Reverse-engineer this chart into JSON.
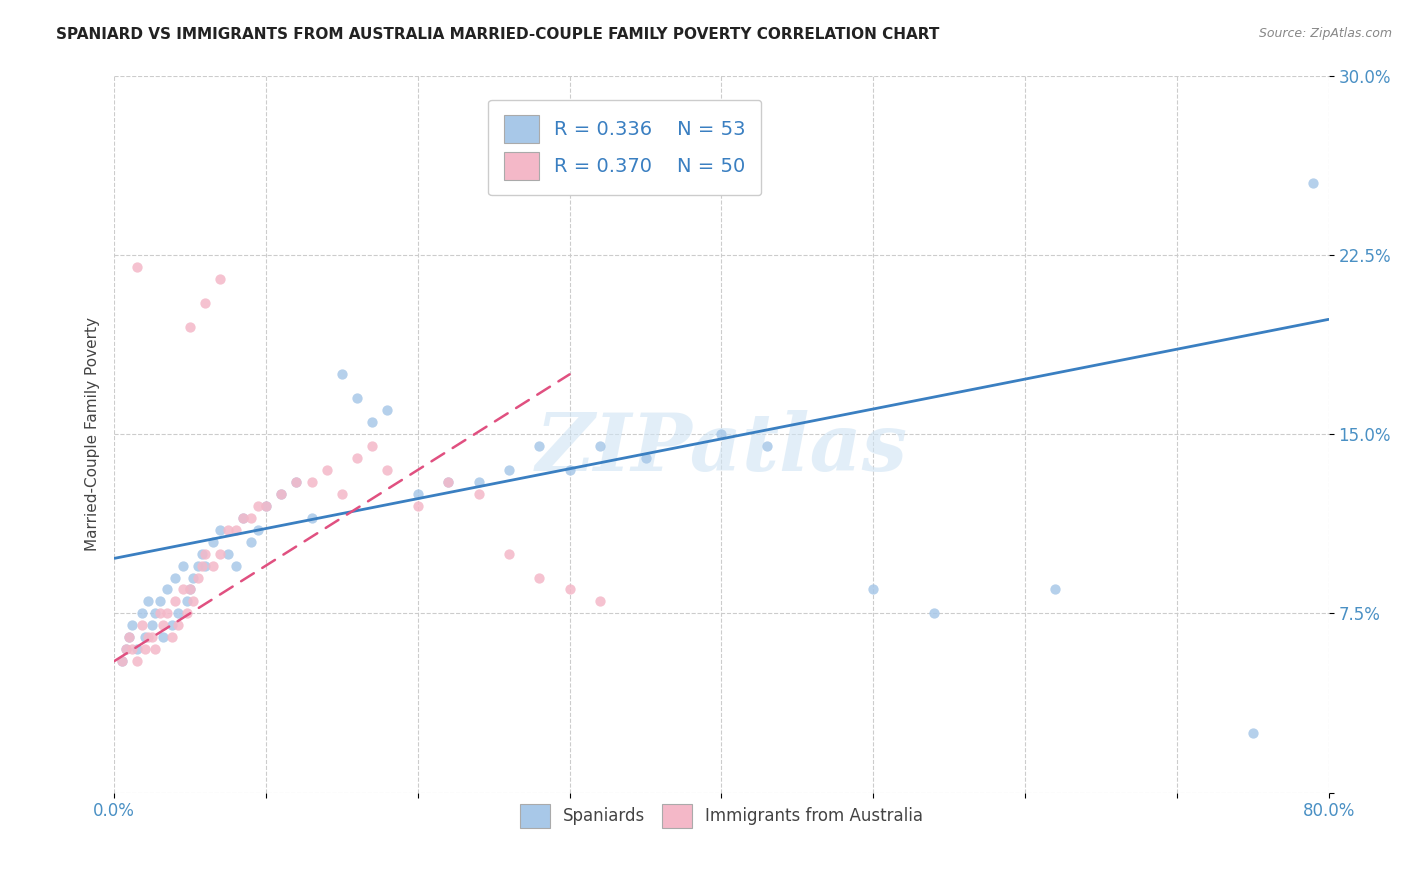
{
  "title": "SPANIARD VS IMMIGRANTS FROM AUSTRALIA MARRIED-COUPLE FAMILY POVERTY CORRELATION CHART",
  "source": "Source: ZipAtlas.com",
  "ylabel": "Married-Couple Family Poverty",
  "xlim": [
    0.0,
    0.8
  ],
  "ylim": [
    0.0,
    0.3
  ],
  "blue_color": "#a8c8e8",
  "pink_color": "#f4b8c8",
  "blue_line_color": "#3a7fc1",
  "pink_line_color": "#e05080",
  "watermark_text": "ZIPatlas",
  "blue_r": "0.336",
  "blue_n": "53",
  "pink_r": "0.370",
  "pink_n": "50",
  "blue_line_x": [
    0.0,
    0.8
  ],
  "blue_line_y": [
    0.098,
    0.198
  ],
  "pink_line_x": [
    0.0,
    0.3
  ],
  "pink_line_y": [
    0.055,
    0.175
  ],
  "spaniards_x": [
    0.005,
    0.008,
    0.01,
    0.012,
    0.015,
    0.018,
    0.02,
    0.022,
    0.025,
    0.027,
    0.03,
    0.032,
    0.035,
    0.038,
    0.04,
    0.042,
    0.045,
    0.048,
    0.05,
    0.052,
    0.055,
    0.058,
    0.06,
    0.065,
    0.07,
    0.075,
    0.08,
    0.085,
    0.09,
    0.095,
    0.1,
    0.11,
    0.12,
    0.13,
    0.15,
    0.16,
    0.17,
    0.18,
    0.2,
    0.22,
    0.24,
    0.26,
    0.28,
    0.3,
    0.32,
    0.35,
    0.4,
    0.43,
    0.5,
    0.54,
    0.62,
    0.75,
    0.79
  ],
  "spaniards_y": [
    0.055,
    0.06,
    0.065,
    0.07,
    0.06,
    0.075,
    0.065,
    0.08,
    0.07,
    0.075,
    0.08,
    0.065,
    0.085,
    0.07,
    0.09,
    0.075,
    0.095,
    0.08,
    0.085,
    0.09,
    0.095,
    0.1,
    0.095,
    0.105,
    0.11,
    0.1,
    0.095,
    0.115,
    0.105,
    0.11,
    0.12,
    0.125,
    0.13,
    0.115,
    0.175,
    0.165,
    0.155,
    0.16,
    0.125,
    0.13,
    0.13,
    0.135,
    0.145,
    0.135,
    0.145,
    0.14,
    0.15,
    0.145,
    0.085,
    0.075,
    0.085,
    0.025,
    0.255
  ],
  "australia_x": [
    0.005,
    0.008,
    0.01,
    0.012,
    0.015,
    0.018,
    0.02,
    0.022,
    0.025,
    0.027,
    0.03,
    0.032,
    0.035,
    0.038,
    0.04,
    0.042,
    0.045,
    0.048,
    0.05,
    0.052,
    0.055,
    0.058,
    0.06,
    0.065,
    0.07,
    0.075,
    0.08,
    0.085,
    0.09,
    0.095,
    0.1,
    0.11,
    0.12,
    0.13,
    0.14,
    0.15,
    0.16,
    0.17,
    0.18,
    0.2,
    0.22,
    0.24,
    0.26,
    0.28,
    0.3,
    0.32,
    0.05,
    0.06,
    0.07,
    0.015
  ],
  "australia_y": [
    0.055,
    0.06,
    0.065,
    0.06,
    0.055,
    0.07,
    0.06,
    0.065,
    0.065,
    0.06,
    0.075,
    0.07,
    0.075,
    0.065,
    0.08,
    0.07,
    0.085,
    0.075,
    0.085,
    0.08,
    0.09,
    0.095,
    0.1,
    0.095,
    0.1,
    0.11,
    0.11,
    0.115,
    0.115,
    0.12,
    0.12,
    0.125,
    0.13,
    0.13,
    0.135,
    0.125,
    0.14,
    0.145,
    0.135,
    0.12,
    0.13,
    0.125,
    0.1,
    0.09,
    0.085,
    0.08,
    0.195,
    0.205,
    0.215,
    0.22
  ]
}
